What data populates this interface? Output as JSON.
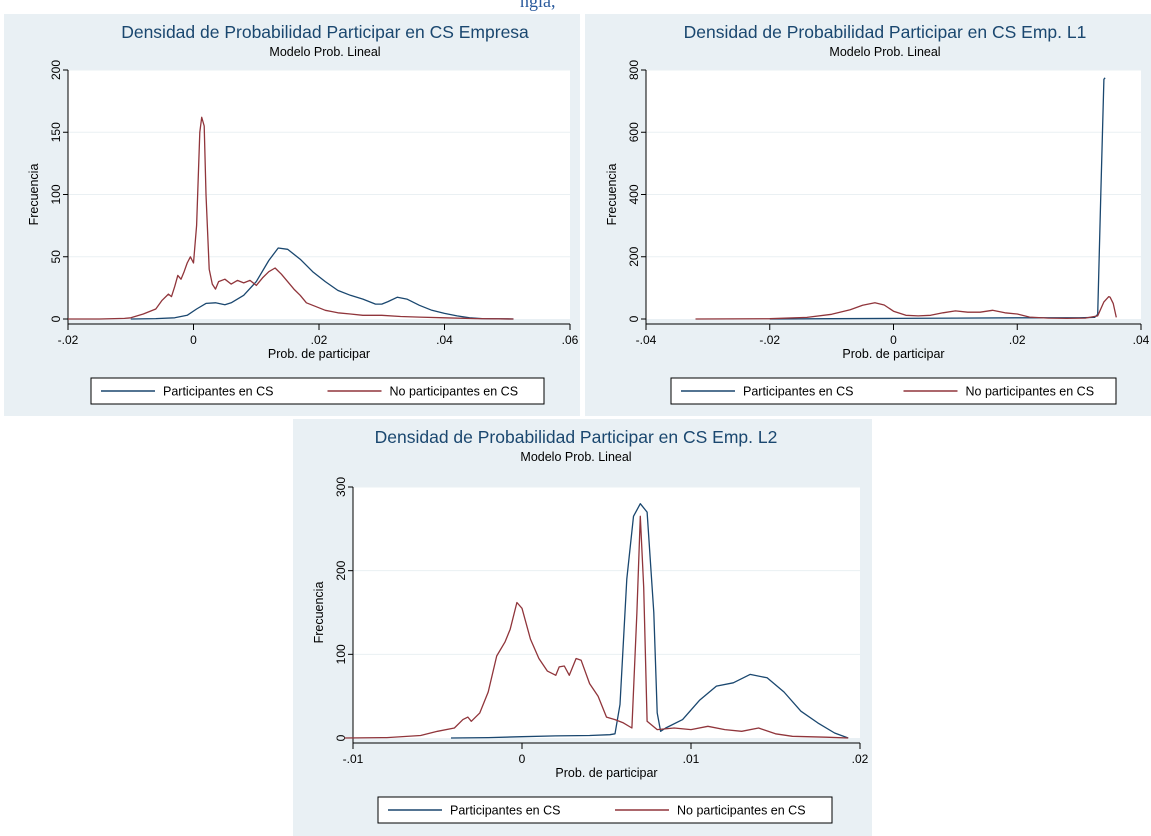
{
  "header_fragment": "ngla,",
  "colors": {
    "participants": "#1a476f",
    "non_participants": "#90353b",
    "title": "#1a476f",
    "background": "#e9f0f4"
  },
  "chart_data": [
    {
      "type": "line",
      "title": "Densidad de Probabilidad Participar en CS Empresa",
      "subtitle": "Modelo Prob. Lineal",
      "xlabel": "Prob. de participar",
      "ylabel": "Frecuencia",
      "xlim": [
        -0.02,
        0.06
      ],
      "ylim": [
        0,
        200
      ],
      "xticks": [
        -0.02,
        0,
        0.02,
        0.04,
        0.06
      ],
      "xtick_labels": [
        "-.02",
        "0",
        ".02",
        ".04",
        ".06"
      ],
      "yticks": [
        0,
        50,
        100,
        150,
        200
      ],
      "ytick_labels": [
        "0",
        "50",
        "100",
        "150",
        "200"
      ],
      "grid": true,
      "legend_position": "bottom",
      "series": [
        {
          "name": "Participantes en CS",
          "color": "#1a476f",
          "points": [
            [
              -0.01,
              0
            ],
            [
              -0.006,
              0.3
            ],
            [
              -0.003,
              1
            ],
            [
              -0.001,
              3
            ],
            [
              0.0005,
              8
            ],
            [
              0.002,
              12.5
            ],
            [
              0.0035,
              13
            ],
            [
              0.005,
              11.5
            ],
            [
              0.006,
              13
            ],
            [
              0.008,
              19
            ],
            [
              0.01,
              30
            ],
            [
              0.012,
              47
            ],
            [
              0.0135,
              57
            ],
            [
              0.015,
              56
            ],
            [
              0.017,
              48
            ],
            [
              0.019,
              38
            ],
            [
              0.021,
              30
            ],
            [
              0.023,
              23
            ],
            [
              0.025,
              19
            ],
            [
              0.027,
              16
            ],
            [
              0.029,
              12
            ],
            [
              0.03,
              12
            ],
            [
              0.031,
              14
            ],
            [
              0.0325,
              17.5
            ],
            [
              0.034,
              16
            ],
            [
              0.036,
              11
            ],
            [
              0.038,
              7
            ],
            [
              0.04,
              4.5
            ],
            [
              0.042,
              2.5
            ],
            [
              0.044,
              1
            ],
            [
              0.046,
              0.3
            ],
            [
              0.051,
              0
            ]
          ]
        },
        {
          "name": "No participantes en CS",
          "color": "#90353b",
          "points": [
            [
              -0.02,
              0
            ],
            [
              -0.015,
              0
            ],
            [
              -0.011,
              0.5
            ],
            [
              -0.01,
              1
            ],
            [
              -0.008,
              4
            ],
            [
              -0.006,
              8
            ],
            [
              -0.005,
              15
            ],
            [
              -0.004,
              20
            ],
            [
              -0.0035,
              18
            ],
            [
              -0.003,
              26
            ],
            [
              -0.0025,
              35
            ],
            [
              -0.002,
              32
            ],
            [
              -0.0015,
              38
            ],
            [
              -0.001,
              45
            ],
            [
              -0.0005,
              50
            ],
            [
              0,
              45
            ],
            [
              0.0005,
              75
            ],
            [
              0.001,
              150
            ],
            [
              0.0013,
              162
            ],
            [
              0.0017,
              155
            ],
            [
              0.002,
              100
            ],
            [
              0.0025,
              40
            ],
            [
              0.003,
              28
            ],
            [
              0.0035,
              24
            ],
            [
              0.004,
              30
            ],
            [
              0.005,
              32
            ],
            [
              0.006,
              28
            ],
            [
              0.007,
              31
            ],
            [
              0.008,
              29
            ],
            [
              0.009,
              31
            ],
            [
              0.01,
              27
            ],
            [
              0.011,
              33
            ],
            [
              0.012,
              38
            ],
            [
              0.013,
              41
            ],
            [
              0.014,
              36
            ],
            [
              0.015,
              30
            ],
            [
              0.016,
              24
            ],
            [
              0.017,
              19
            ],
            [
              0.018,
              13
            ],
            [
              0.019,
              11
            ],
            [
              0.02,
              9
            ],
            [
              0.021,
              7
            ],
            [
              0.022,
              6
            ],
            [
              0.023,
              5
            ],
            [
              0.025,
              4
            ],
            [
              0.027,
              3
            ],
            [
              0.03,
              3
            ],
            [
              0.033,
              2
            ],
            [
              0.036,
              1.5
            ],
            [
              0.04,
              1
            ],
            [
              0.045,
              0.3
            ],
            [
              0.051,
              0
            ]
          ]
        }
      ]
    },
    {
      "type": "line",
      "title": "Densidad de Probabilidad Participar en CS Emp. L1",
      "subtitle": "Modelo Prob. Lineal",
      "xlabel": "Prob. de participar",
      "ylabel": "Frecuencia",
      "xlim": [
        -0.04,
        0.04
      ],
      "ylim": [
        0,
        800
      ],
      "xticks": [
        -0.04,
        -0.02,
        0,
        0.02,
        0.04
      ],
      "xtick_labels": [
        "-.04",
        "-.02",
        "0",
        ".02",
        ".04"
      ],
      "yticks": [
        0,
        200,
        400,
        600,
        800
      ],
      "ytick_labels": [
        "0",
        "200",
        "400",
        "600",
        "800"
      ],
      "grid": true,
      "legend_position": "bottom",
      "series": [
        {
          "name": "Participantes en CS",
          "color": "#1a476f",
          "points": [
            [
              -0.02,
              0
            ],
            [
              -0.01,
              1
            ],
            [
              0,
              2
            ],
            [
              0.01,
              3
            ],
            [
              0.02,
              4
            ],
            [
              0.03,
              4
            ],
            [
              0.0325,
              5
            ],
            [
              0.033,
              15
            ],
            [
              0.0335,
              400
            ],
            [
              0.034,
              770
            ],
            [
              0.0342,
              775
            ]
          ]
        },
        {
          "name": "No participantes en CS",
          "color": "#90353b",
          "points": [
            [
              -0.032,
              0
            ],
            [
              -0.02,
              1
            ],
            [
              -0.014,
              5
            ],
            [
              -0.01,
              15
            ],
            [
              -0.007,
              30
            ],
            [
              -0.005,
              44
            ],
            [
              -0.003,
              52
            ],
            [
              -0.0015,
              45
            ],
            [
              0,
              25
            ],
            [
              0.002,
              12
            ],
            [
              0.004,
              10
            ],
            [
              0.006,
              12
            ],
            [
              0.008,
              20
            ],
            [
              0.01,
              26
            ],
            [
              0.012,
              22
            ],
            [
              0.014,
              22
            ],
            [
              0.016,
              28
            ],
            [
              0.018,
              20
            ],
            [
              0.02,
              16
            ],
            [
              0.022,
              6
            ],
            [
              0.025,
              3
            ],
            [
              0.028,
              2
            ],
            [
              0.031,
              3
            ],
            [
              0.033,
              10
            ],
            [
              0.034,
              55
            ],
            [
              0.0348,
              72
            ],
            [
              0.035,
              70
            ],
            [
              0.0355,
              50
            ],
            [
              0.036,
              5
            ]
          ]
        }
      ]
    },
    {
      "type": "line",
      "title": "Densidad de Probabilidad Participar en CS Emp. L2",
      "subtitle": "Modelo Prob. Lineal",
      "xlabel": "Prob. de participar",
      "ylabel": "Frecuencia",
      "xlim": [
        -0.01,
        0.02
      ],
      "ylim": [
        0,
        300
      ],
      "xticks": [
        -0.01,
        0,
        0.01,
        0.02
      ],
      "xtick_labels": [
        "-.01",
        "0",
        ".01",
        ".02"
      ],
      "yticks": [
        0,
        100,
        200,
        300
      ],
      "ytick_labels": [
        "0",
        "100",
        "200",
        "300"
      ],
      "grid": true,
      "legend_position": "bottom",
      "series": [
        {
          "name": "Participantes en CS",
          "color": "#1a476f",
          "points": [
            [
              -0.0042,
              0
            ],
            [
              -0.002,
              0.5
            ],
            [
              0,
              1.5
            ],
            [
              0.002,
              2.5
            ],
            [
              0.004,
              3
            ],
            [
              0.0052,
              4
            ],
            [
              0.0055,
              5
            ],
            [
              0.0058,
              40
            ],
            [
              0.0062,
              190
            ],
            [
              0.0066,
              265
            ],
            [
              0.007,
              280
            ],
            [
              0.0074,
              270
            ],
            [
              0.0078,
              150
            ],
            [
              0.008,
              30
            ],
            [
              0.0082,
              8
            ],
            [
              0.0085,
              12
            ],
            [
              0.0095,
              22
            ],
            [
              0.0105,
              45
            ],
            [
              0.0115,
              62
            ],
            [
              0.0125,
              66
            ],
            [
              0.0135,
              76
            ],
            [
              0.0145,
              72
            ],
            [
              0.0155,
              55
            ],
            [
              0.0165,
              32
            ],
            [
              0.0175,
              18
            ],
            [
              0.0185,
              6
            ],
            [
              0.0193,
              0
            ]
          ]
        },
        {
          "name": "No participantes en CS",
          "color": "#90353b",
          "points": [
            [
              -0.0105,
              0
            ],
            [
              -0.008,
              0.5
            ],
            [
              -0.006,
              3
            ],
            [
              -0.005,
              8
            ],
            [
              -0.004,
              12
            ],
            [
              -0.0035,
              22
            ],
            [
              -0.0032,
              25
            ],
            [
              -0.003,
              20
            ],
            [
              -0.0025,
              30
            ],
            [
              -0.002,
              55
            ],
            [
              -0.0015,
              98
            ],
            [
              -0.001,
              115
            ],
            [
              -0.0007,
              130
            ],
            [
              -0.0003,
              162
            ],
            [
              0,
              155
            ],
            [
              0.0005,
              118
            ],
            [
              0.001,
              95
            ],
            [
              0.0015,
              80
            ],
            [
              0.002,
              75
            ],
            [
              0.0022,
              85
            ],
            [
              0.0025,
              86
            ],
            [
              0.0028,
              75
            ],
            [
              0.0032,
              95
            ],
            [
              0.0035,
              93
            ],
            [
              0.004,
              65
            ],
            [
              0.0045,
              50
            ],
            [
              0.005,
              25
            ],
            [
              0.0055,
              22
            ],
            [
              0.006,
              18
            ],
            [
              0.0065,
              12
            ],
            [
              0.0068,
              150
            ],
            [
              0.007,
              265
            ],
            [
              0.0072,
              180
            ],
            [
              0.0074,
              20
            ],
            [
              0.008,
              10
            ],
            [
              0.009,
              12
            ],
            [
              0.01,
              10
            ],
            [
              0.011,
              14
            ],
            [
              0.012,
              10
            ],
            [
              0.013,
              8
            ],
            [
              0.014,
              12
            ],
            [
              0.015,
              5
            ],
            [
              0.016,
              2
            ],
            [
              0.018,
              1
            ],
            [
              0.0193,
              0
            ]
          ]
        }
      ]
    }
  ]
}
